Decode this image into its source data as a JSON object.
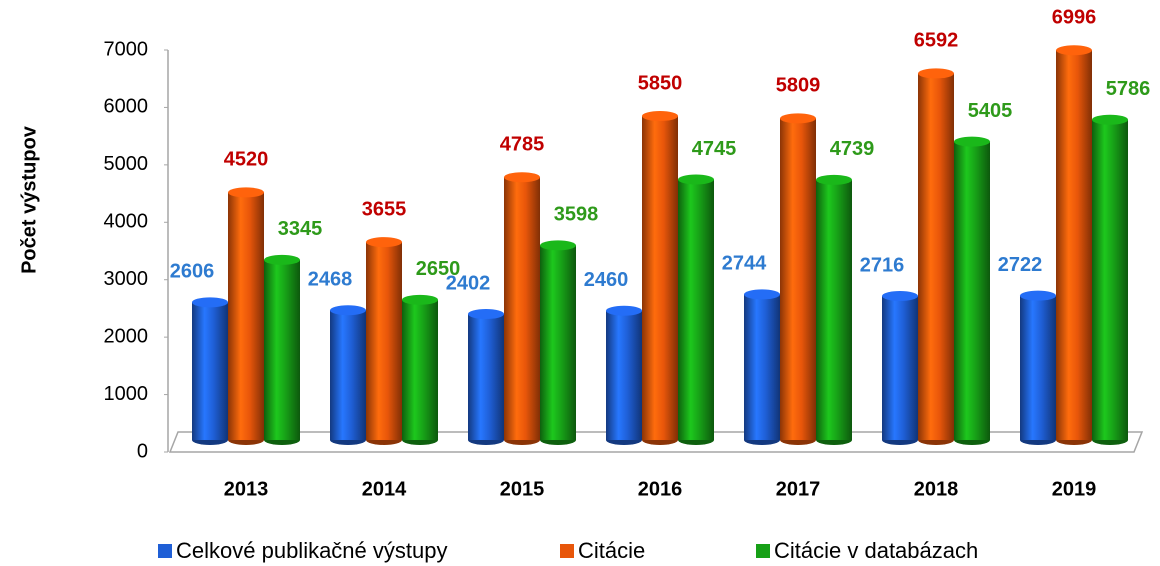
{
  "chart_data": {
    "type": "bar",
    "y_label": "Počet výstupov",
    "categories": [
      "2013",
      "2014",
      "2015",
      "2016",
      "2017",
      "2018",
      "2019"
    ],
    "series": [
      {
        "name": "Celkové publikačné výstupy",
        "color": "#1f5fd6",
        "label_color": "#2e7bd0",
        "values": [
          2606,
          2468,
          2402,
          2460,
          2744,
          2716,
          2722
        ]
      },
      {
        "name": "Citácie",
        "color": "#e8560a",
        "label_color": "#c00000",
        "values": [
          4520,
          3655,
          4785,
          5850,
          5809,
          6592,
          6996
        ]
      },
      {
        "name": "Citácie v databázach",
        "color": "#17a017",
        "label_color": "#2e9a1a",
        "values": [
          3345,
          2650,
          3598,
          4745,
          4739,
          5405,
          5786
        ]
      }
    ],
    "ylim": [
      0,
      7000
    ],
    "yticks": [
      0,
      1000,
      2000,
      3000,
      4000,
      5000,
      6000,
      7000
    ]
  }
}
